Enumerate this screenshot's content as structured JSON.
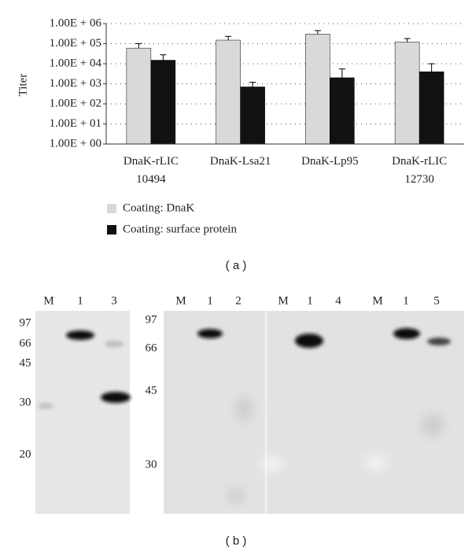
{
  "chart_data": {
    "type": "bar",
    "y_label": "Titer",
    "log_scale": true,
    "grid": true,
    "grid_style": "dotted",
    "categories": [
      "DnaK-rLIC\n10494",
      "DnaK-Lsa21",
      "DnaK-Lp95",
      "DnaK-rLIC\n12730"
    ],
    "series": [
      {
        "name": "Coating: DnaK",
        "color": "#d9d9d9",
        "values": [
          60000,
          150000,
          300000,
          120000
        ],
        "errors": [
          40000,
          80000,
          150000,
          60000
        ]
      },
      {
        "name": "Coating: surface protein",
        "color": "#111111",
        "values": [
          15000,
          700,
          2000,
          4000
        ],
        "errors": [
          13000,
          500,
          3500,
          6000
        ]
      }
    ],
    "ylim": [
      1,
      1000000
    ],
    "yticks": [
      {
        "value": 1,
        "label": "1.00E + 00"
      },
      {
        "value": 10,
        "label": "1.00E + 01"
      },
      {
        "value": 100,
        "label": "1.00E + 02"
      },
      {
        "value": 1000,
        "label": "1.00E + 03"
      },
      {
        "value": 10000,
        "label": "1.00E + 04"
      },
      {
        "value": 100000,
        "label": "1.00E + 05"
      },
      {
        "value": 1000000,
        "label": "1.00E + 06"
      }
    ],
    "panel_label": "( a )"
  },
  "figure_b": {
    "panel_label": "( b )",
    "blots": [
      {
        "lanes": [
          "M",
          "1",
          "3"
        ],
        "markers": [
          97,
          66,
          45,
          30,
          20
        ]
      },
      {
        "lanes": [
          "M",
          "1",
          "2",
          "M",
          "1",
          "4",
          "M",
          "1",
          "5"
        ],
        "markers": [
          97,
          66,
          45,
          30
        ]
      }
    ]
  }
}
